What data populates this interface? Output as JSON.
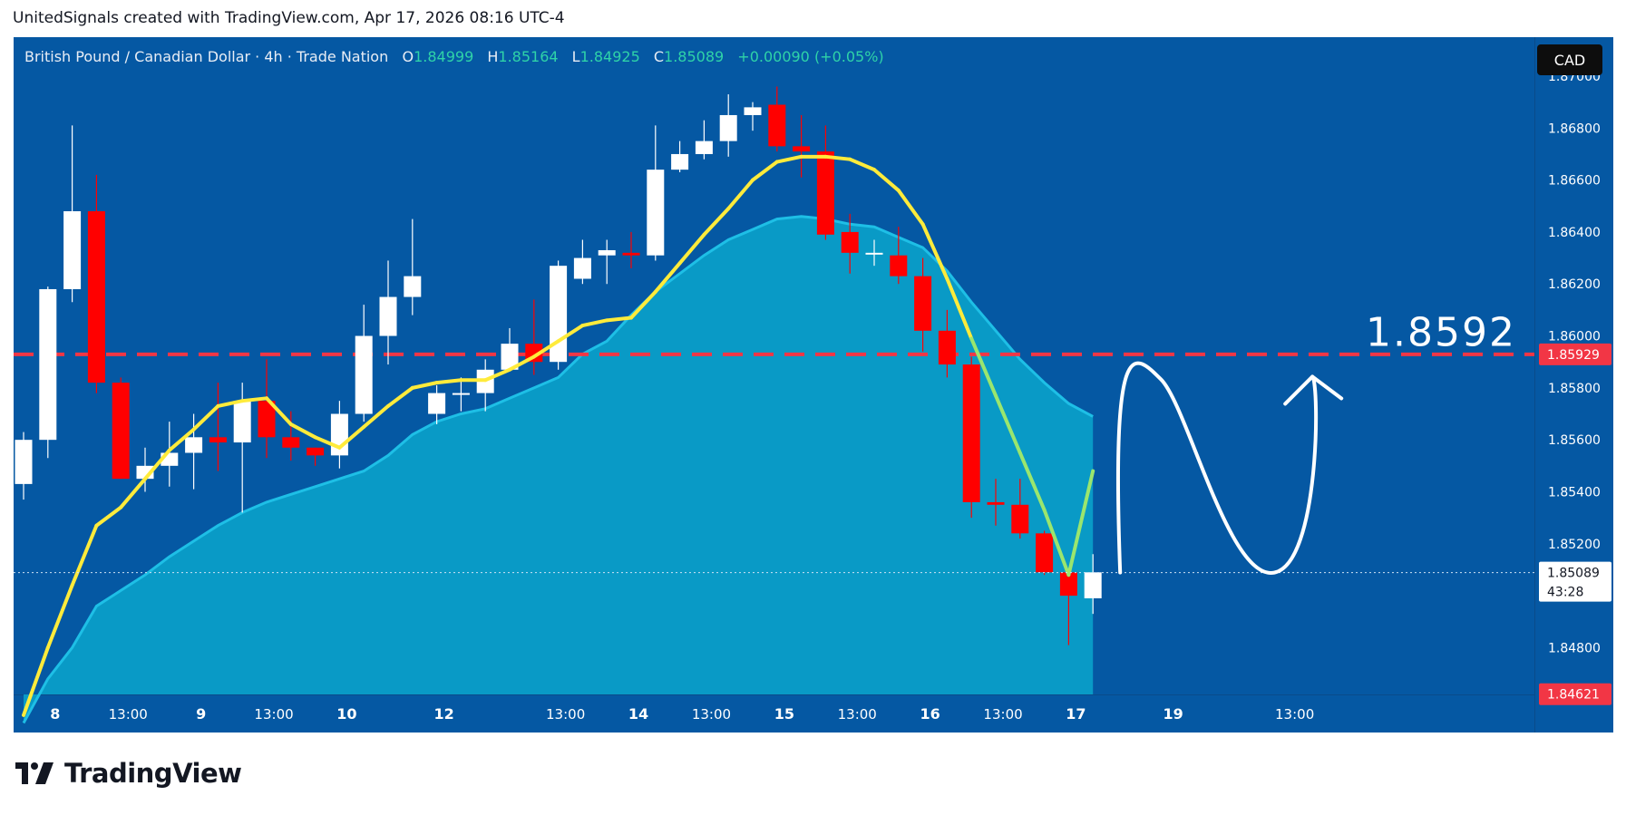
{
  "caption": "UnitedSignals created with TradingView.com, Apr 17, 2026 08:16 UTC-4",
  "legend": {
    "symbol": "British Pound / Canadian Dollar · 4h · Trade Nation",
    "o_label": "O",
    "o_value": "1.84999",
    "h_label": "H",
    "h_value": "1.85164",
    "l_label": "L",
    "l_value": "1.84925",
    "c_label": "C",
    "c_value": "1.85089",
    "change": "+0.00090 (+0.05%)"
  },
  "currency_button": "CAD",
  "annotation_price": "1.8592",
  "brand": "TradingView",
  "colors": {
    "background": "#0558a3",
    "up_candle": "#ffffff",
    "down_candle": "#ff0000",
    "fast_ma": "#ffeb3b",
    "slow_ma_fill": "#0aa6cc",
    "target_line": "#f23645",
    "price_label": "#ffffff",
    "low_label": "#f23645"
  },
  "chart_data": {
    "type": "candlestick",
    "symbol": "GBPCAD",
    "timeframe": "4h",
    "ylim": [
      1.8462,
      1.8715
    ],
    "y_ticks": [
      "1.87000",
      "1.86800",
      "1.86600",
      "1.86400",
      "1.86200",
      "1.86000",
      "1.85800",
      "1.85600",
      "1.85400",
      "1.85200",
      "1.84800"
    ],
    "x_ticks": [
      {
        "label": "8",
        "bar": 1.3
      },
      {
        "label": "13:00",
        "bar": 4.3
      },
      {
        "label": "9",
        "bar": 7.3
      },
      {
        "label": "13:00",
        "bar": 10.3
      },
      {
        "label": "10",
        "bar": 13.3
      },
      {
        "label": "12",
        "bar": 17.3
      },
      {
        "label": "13:00",
        "bar": 22.3
      },
      {
        "label": "14",
        "bar": 25.3
      },
      {
        "label": "13:00",
        "bar": 28.3
      },
      {
        "label": "15",
        "bar": 31.3
      },
      {
        "label": "13:00",
        "bar": 34.3
      },
      {
        "label": "16",
        "bar": 37.3
      },
      {
        "label": "13:00",
        "bar": 40.3
      },
      {
        "label": "17",
        "bar": 43.3
      },
      {
        "label": "19",
        "bar": 47.3
      },
      {
        "label": "13:00",
        "bar": 52.3
      }
    ],
    "candles": [
      [
        1.8543,
        1.856,
        1.8537,
        1.8563
      ],
      [
        1.856,
        1.8618,
        1.8553,
        1.8619
      ],
      [
        1.8618,
        1.8648,
        1.8613,
        1.8681
      ],
      [
        1.8648,
        1.8582,
        1.8578,
        1.8662
      ],
      [
        1.8582,
        1.8545,
        1.8545,
        1.8584
      ],
      [
        1.8545,
        1.855,
        1.854,
        1.8557
      ],
      [
        1.855,
        1.8555,
        1.8542,
        1.8567
      ],
      [
        1.8555,
        1.8561,
        1.8541,
        1.857
      ],
      [
        1.8561,
        1.8559,
        1.8548,
        1.8582
      ],
      [
        1.8559,
        1.8575,
        1.8532,
        1.8582
      ],
      [
        1.8575,
        1.8561,
        1.8553,
        1.8591
      ],
      [
        1.8561,
        1.8557,
        1.8552,
        1.8571
      ],
      [
        1.8557,
        1.8554,
        1.855,
        1.8557
      ],
      [
        1.8554,
        1.857,
        1.8549,
        1.8575
      ],
      [
        1.857,
        1.86,
        1.8567,
        1.8612
      ],
      [
        1.86,
        1.8615,
        1.8589,
        1.8629
      ],
      [
        1.8615,
        1.8623,
        1.8608,
        1.8645
      ],
      [
        1.857,
        1.8578,
        1.8566,
        1.8581
      ],
      [
        1.8578,
        1.8578,
        1.8571,
        1.8584
      ],
      [
        1.8578,
        1.8587,
        1.8571,
        1.8591
      ],
      [
        1.8587,
        1.8597,
        1.8587,
        1.8603
      ],
      [
        1.8597,
        1.859,
        1.8585,
        1.8614
      ],
      [
        1.859,
        1.8627,
        1.8587,
        1.8629
      ],
      [
        1.8622,
        1.863,
        1.862,
        1.8637
      ],
      [
        1.8631,
        1.8633,
        1.862,
        1.8637
      ],
      [
        1.8632,
        1.8631,
        1.8626,
        1.864
      ],
      [
        1.8631,
        1.8664,
        1.8629,
        1.8681
      ],
      [
        1.8664,
        1.867,
        1.8663,
        1.8675
      ],
      [
        1.867,
        1.8675,
        1.8668,
        1.8683
      ],
      [
        1.8675,
        1.8685,
        1.8669,
        1.8693
      ],
      [
        1.8685,
        1.8688,
        1.8679,
        1.869
      ],
      [
        1.8689,
        1.8673,
        1.8671,
        1.8696
      ],
      [
        1.8673,
        1.8671,
        1.8661,
        1.8685
      ],
      [
        1.8671,
        1.8639,
        1.8637,
        1.8681
      ],
      [
        1.864,
        1.8632,
        1.8624,
        1.8647
      ],
      [
        1.8632,
        1.8632,
        1.8627,
        1.8637
      ],
      [
        1.8631,
        1.8623,
        1.862,
        1.8642
      ],
      [
        1.8623,
        1.8602,
        1.8594,
        1.863
      ],
      [
        1.8602,
        1.8589,
        1.8584,
        1.861
      ],
      [
        1.8589,
        1.8536,
        1.853,
        1.8592
      ],
      [
        1.8536,
        1.8535,
        1.8527,
        1.8545
      ],
      [
        1.8535,
        1.8524,
        1.8522,
        1.8545
      ],
      [
        1.8524,
        1.8509,
        1.8508,
        1.8525
      ],
      [
        1.8509,
        1.85,
        1.8481,
        1.8509
      ],
      [
        1.8499,
        1.8509,
        1.8493,
        1.8516
      ]
    ],
    "fast_ma": [
      1.8454,
      1.848,
      1.8504,
      1.8527,
      1.8534,
      1.8545,
      1.8556,
      1.8564,
      1.8573,
      1.8575,
      1.8576,
      1.8566,
      1.8561,
      1.8557,
      1.8565,
      1.8573,
      1.858,
      1.8582,
      1.8583,
      1.8583,
      1.8587,
      1.8592,
      1.8598,
      1.8604,
      1.8606,
      1.8607,
      1.8617,
      1.8628,
      1.8639,
      1.8649,
      1.866,
      1.8667,
      1.8669,
      1.8669,
      1.8668,
      1.8664,
      1.8656,
      1.8643,
      1.8622,
      1.8599,
      1.8577,
      1.8555,
      1.8533,
      1.8508,
      1.8548
    ],
    "slow_ma": [
      1.8451,
      1.8468,
      1.848,
      1.8496,
      1.8502,
      1.8508,
      1.8515,
      1.8521,
      1.8527,
      1.8532,
      1.8536,
      1.8539,
      1.8542,
      1.8545,
      1.8548,
      1.8554,
      1.8562,
      1.8567,
      1.857,
      1.8572,
      1.8576,
      1.858,
      1.8584,
      1.8593,
      1.8598,
      1.8608,
      1.8617,
      1.8624,
      1.8631,
      1.8637,
      1.8641,
      1.8645,
      1.8646,
      1.8645,
      1.8643,
      1.8642,
      1.8638,
      1.8634,
      1.8625,
      1.8613,
      1.8602,
      1.8591,
      1.8582,
      1.8574,
      1.8569
    ],
    "horizontal_line": 1.85929,
    "labels": {
      "last_price": "1.85089",
      "countdown": "43:28",
      "line_price": "1.85929",
      "low_price": "1.84621"
    },
    "annotation": {
      "type": "projected-path",
      "target": 1.8592
    }
  }
}
